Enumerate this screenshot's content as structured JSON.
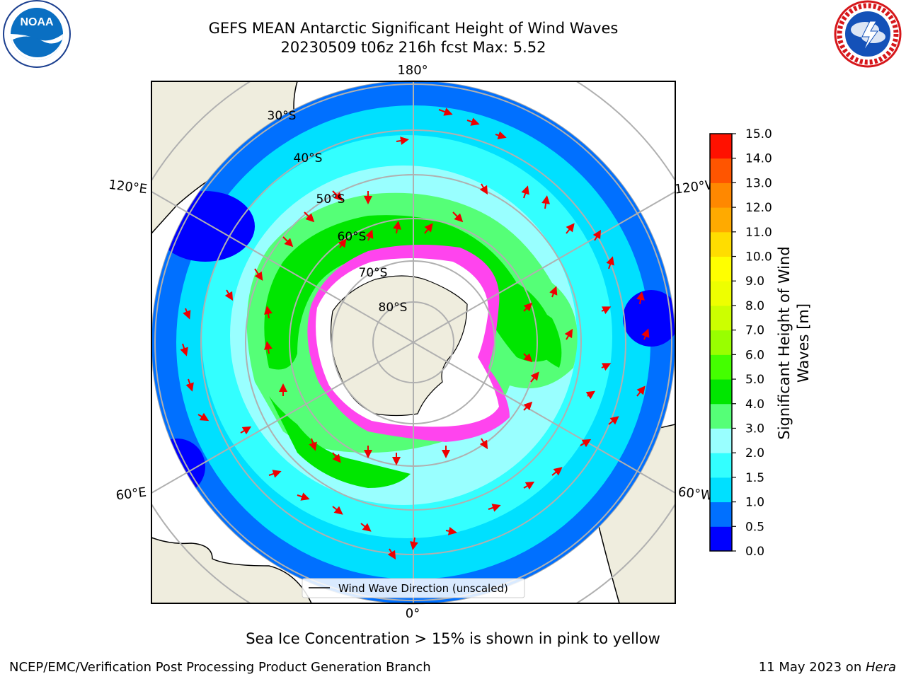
{
  "title": {
    "line1": "GEFS MEAN Antarctic Significant Height of Wind Waves",
    "line2": "20230509 t06z 216h fcst   Max: 5.52"
  },
  "map": {
    "projection": "south-polar-stereographic",
    "lon_labels": {
      "top": "180°",
      "bottom": "0°",
      "left_upper": "120°E",
      "left_lower": "60°E",
      "right_upper": "120°W",
      "right_lower": "60°W"
    },
    "lat_labels": [
      "30°S",
      "40°S",
      "50°S",
      "60°S",
      "70°S",
      "80°S"
    ],
    "land_color": "#efedde",
    "ice_color": "#ffffff",
    "sea_ice_colors": [
      "#ff44ee",
      "#ffd800"
    ]
  },
  "legend": {
    "label": "Wind Wave Direction (unscaled)"
  },
  "arrow_color": "#ee0000",
  "colorbar": {
    "label_line1": "Significant Height of Wind",
    "label_line2": "Waves [m]",
    "ticks": [
      "0.0",
      "0.5",
      "1.0",
      "1.5",
      "2.0",
      "3.0",
      "4.0",
      "5.0",
      "6.0",
      "7.0",
      "8.0",
      "9.0",
      "10.0",
      "11.0",
      "12.0",
      "13.0",
      "14.0",
      "15.0"
    ],
    "colors": [
      "#0000ff",
      "#0070ff",
      "#00e0ff",
      "#33ffff",
      "#99ffff",
      "#55ff77",
      "#00e600",
      "#44ff00",
      "#99ff00",
      "#ccff00",
      "#eeff00",
      "#ffff00",
      "#ffdd00",
      "#ffaa00",
      "#ff8800",
      "#ff5500",
      "#ff1100"
    ]
  },
  "caption": "Sea Ice Concentration > 15% is shown in pink to yellow",
  "footer": {
    "left": "NCEP/EMC/Verification Post Processing Product Generation Branch",
    "date": "11 May 2023 on ",
    "machine": "Hera"
  }
}
